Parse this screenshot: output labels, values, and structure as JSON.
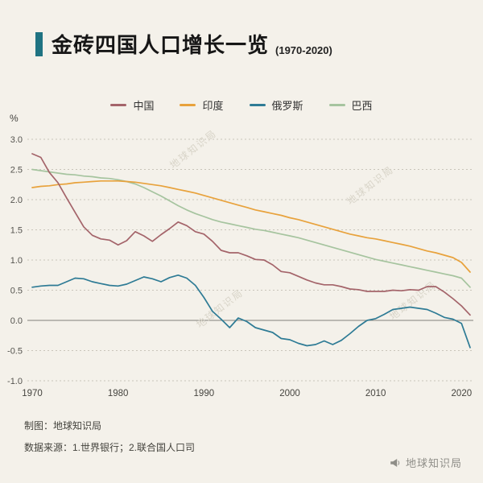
{
  "header": {
    "title": "金砖四国人口增长一览",
    "subtitle": "(1970-2020)",
    "accent_color": "#1f7382"
  },
  "footer": {
    "credit": "制图：地球知识局",
    "source": "数据来源：1.世界银行；2.联合国人口司"
  },
  "watermark": {
    "text": "地球知识局"
  },
  "chart_data": {
    "type": "line",
    "title": "金砖四国人口增长一览 (1970-2020)",
    "xlabel": "",
    "ylabel": "%",
    "ylim": [
      -1.0,
      3.0
    ],
    "yticks": [
      3.0,
      2.5,
      2.0,
      1.5,
      1.0,
      0.5,
      0.0,
      -0.5,
      -1.0
    ],
    "xticks": [
      1970,
      1980,
      1990,
      2000,
      2010,
      2020
    ],
    "x_range": [
      1970,
      2021
    ],
    "grid": "dotted horizontal, solid zero line",
    "legend_position": "top center",
    "x": [
      1970,
      1971,
      1972,
      1973,
      1974,
      1975,
      1976,
      1977,
      1978,
      1979,
      1980,
      1981,
      1982,
      1983,
      1984,
      1985,
      1986,
      1987,
      1988,
      1989,
      1990,
      1991,
      1992,
      1993,
      1994,
      1995,
      1996,
      1997,
      1998,
      1999,
      2000,
      2001,
      2002,
      2003,
      2004,
      2005,
      2006,
      2007,
      2008,
      2009,
      2010,
      2011,
      2012,
      2013,
      2014,
      2015,
      2016,
      2017,
      2018,
      2019,
      2020,
      2021
    ],
    "series": [
      {
        "id": "china",
        "name": "中国",
        "color": "#a4646a",
        "values": [
          2.76,
          2.7,
          2.45,
          2.28,
          2.03,
          1.79,
          1.55,
          1.41,
          1.35,
          1.33,
          1.25,
          1.32,
          1.47,
          1.4,
          1.31,
          1.42,
          1.52,
          1.63,
          1.57,
          1.47,
          1.43,
          1.31,
          1.16,
          1.12,
          1.12,
          1.07,
          1.01,
          1.0,
          0.92,
          0.81,
          0.79,
          0.73,
          0.67,
          0.62,
          0.59,
          0.59,
          0.56,
          0.52,
          0.51,
          0.48,
          0.48,
          0.48,
          0.5,
          0.49,
          0.51,
          0.5,
          0.56,
          0.56,
          0.47,
          0.36,
          0.24,
          0.09
        ]
      },
      {
        "id": "india",
        "name": "印度",
        "color": "#e8a23c",
        "values": [
          2.2,
          2.22,
          2.23,
          2.25,
          2.26,
          2.28,
          2.29,
          2.3,
          2.31,
          2.31,
          2.31,
          2.3,
          2.29,
          2.27,
          2.25,
          2.23,
          2.2,
          2.17,
          2.14,
          2.11,
          2.07,
          2.03,
          1.99,
          1.95,
          1.91,
          1.87,
          1.83,
          1.8,
          1.77,
          1.74,
          1.7,
          1.67,
          1.63,
          1.59,
          1.55,
          1.51,
          1.47,
          1.43,
          1.4,
          1.37,
          1.35,
          1.32,
          1.29,
          1.26,
          1.23,
          1.19,
          1.15,
          1.12,
          1.08,
          1.04,
          0.96,
          0.8
        ]
      },
      {
        "id": "russia",
        "name": "俄罗斯",
        "color": "#2e7b95",
        "values": [
          0.55,
          0.57,
          0.58,
          0.58,
          0.64,
          0.7,
          0.69,
          0.64,
          0.61,
          0.58,
          0.57,
          0.6,
          0.66,
          0.72,
          0.69,
          0.64,
          0.71,
          0.75,
          0.7,
          0.58,
          0.38,
          0.15,
          0.02,
          -0.12,
          0.04,
          -0.02,
          -0.12,
          -0.16,
          -0.2,
          -0.3,
          -0.32,
          -0.38,
          -0.42,
          -0.4,
          -0.34,
          -0.4,
          -0.33,
          -0.22,
          -0.1,
          0.0,
          0.03,
          0.1,
          0.18,
          0.2,
          0.22,
          0.2,
          0.18,
          0.12,
          0.05,
          0.02,
          -0.05,
          -0.45
        ]
      },
      {
        "id": "brazil",
        "name": "巴西",
        "color": "#a6c49f",
        "values": [
          2.5,
          2.48,
          2.46,
          2.44,
          2.42,
          2.41,
          2.39,
          2.38,
          2.36,
          2.35,
          2.33,
          2.3,
          2.26,
          2.2,
          2.13,
          2.06,
          1.98,
          1.9,
          1.83,
          1.77,
          1.72,
          1.67,
          1.63,
          1.6,
          1.57,
          1.54,
          1.51,
          1.49,
          1.46,
          1.43,
          1.4,
          1.37,
          1.33,
          1.29,
          1.25,
          1.21,
          1.17,
          1.13,
          1.09,
          1.05,
          1.01,
          0.98,
          0.95,
          0.92,
          0.89,
          0.86,
          0.83,
          0.8,
          0.77,
          0.74,
          0.7,
          0.55
        ]
      }
    ]
  }
}
